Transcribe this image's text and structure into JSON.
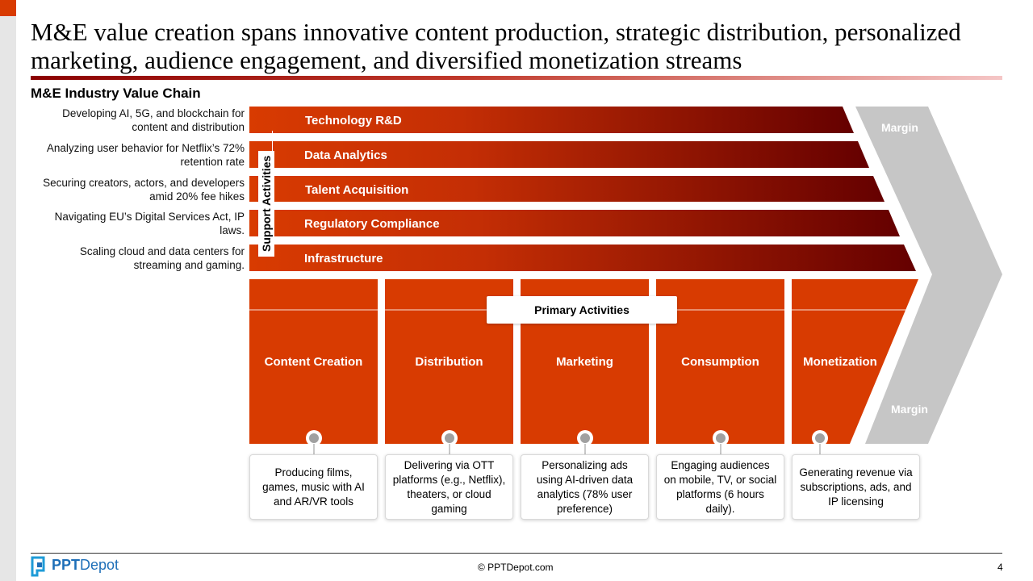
{
  "title": "M&E value creation spans innovative content production, strategic distribution, personalized marketing, audience engagement, and diversified monetization streams",
  "section_title": "M&E Industry Value Chain",
  "support": {
    "label": "Support Activities",
    "activities": [
      {
        "name": "Technology R&D",
        "description": "Developing AI, 5G, and blockchain for content and distribution"
      },
      {
        "name": "Data Analytics",
        "description": "Analyzing user behavior for Netflix’s 72% retention rate"
      },
      {
        "name": "Talent Acquisition",
        "description": "Securing creators, actors, and developers amid 20% fee hikes"
      },
      {
        "name": "Regulatory Compliance",
        "description": "Navigating EU’s Digital Services Act, IP laws."
      },
      {
        "name": "Infrastructure",
        "description": "Scaling cloud and data centers for streaming and gaming."
      }
    ]
  },
  "primary": {
    "label": "Primary Activities",
    "activities": [
      {
        "name": "Content Creation",
        "description": "Producing films, games, music with AI and AR/VR tools"
      },
      {
        "name": "Distribution",
        "description": "Delivering via OTT platforms (e.g., Netflix), theaters, or cloud gaming"
      },
      {
        "name": "Marketing",
        "description": "Personalizing ads using AI-driven data analytics (78% user preference)"
      },
      {
        "name": "Consumption",
        "description": "Engaging audiences on mobile, TV, or social platforms (6 hours daily)."
      },
      {
        "name": "Monetization",
        "description": "Generating revenue via subscriptions, ads, and IP licensing"
      }
    ]
  },
  "margin_labels": [
    "Margin",
    "Margin"
  ],
  "footer": {
    "logo_bold": "PPT",
    "logo_light": "Depot",
    "copyright": "© PPTDepot.com",
    "page_number": "4"
  },
  "colors": {
    "accent": "#d83b01",
    "dark_red": "#6b0000",
    "margin_gray": "#c6c6c6"
  },
  "icons": [
    "ppt-depot-logo-icon",
    "connector-circle-icon"
  ]
}
